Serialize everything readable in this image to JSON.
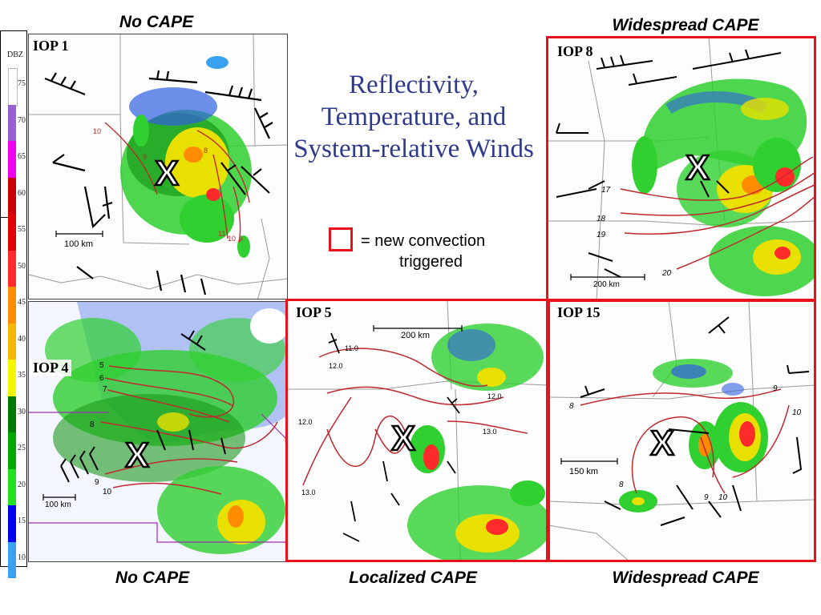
{
  "headers": {
    "top_left": "No CAPE",
    "top_right": "Widespread CAPE",
    "bottom_left": "No CAPE",
    "bottom_middle": "Localized CAPE",
    "bottom_right": "Widespread CAPE"
  },
  "title": "Reflectivity, Temperature, and System-relative Winds",
  "legend": {
    "box_color": "#e8121d",
    "text_line1": "= new convection",
    "text_line2": "triggered"
  },
  "dbz_scale": {
    "label": "DBZ",
    "ticks": [
      "75",
      "70",
      "65",
      "60",
      "55",
      "50",
      "45",
      "40",
      "35",
      "30",
      "25",
      "20",
      "15",
      "10"
    ],
    "colors": [
      "#ffffff",
      "#9a5fd0",
      "#f000f0",
      "#c80000",
      "#e00000",
      "#ff2a2a",
      "#ff8c00",
      "#f5b800",
      "#f5f500",
      "#007a00",
      "#00a800",
      "#22e022",
      "#0000f0",
      "#3aa0f0"
    ]
  },
  "panels": {
    "iop1": {
      "label": "IOP 1",
      "scale": "100 km",
      "contours": [
        "10",
        "9",
        "8",
        "11",
        "10",
        "9"
      ],
      "marker": "X"
    },
    "iop4": {
      "label": "IOP 4",
      "scale": "100 km",
      "contours": [
        "5",
        "6",
        "7",
        "8",
        "9",
        "10"
      ],
      "marker": "X"
    },
    "iop5": {
      "label": "IOP 5",
      "scale": "200 km",
      "contours": [
        "11.0",
        "12.0",
        "12.0",
        "12.0",
        "13.0",
        "13.0"
      ],
      "marker": "X"
    },
    "iop8": {
      "label": "IOP 8",
      "scale": "200 km",
      "contours": [
        "17",
        "18",
        "19",
        "20"
      ],
      "marker": "X"
    },
    "iop15": {
      "label": "IOP 15",
      "scale": "150 km",
      "contours": [
        "8",
        "9",
        "10",
        "8",
        "9",
        "10"
      ],
      "marker": "X"
    }
  },
  "colors": {
    "frame_red": "#e8121d",
    "title_blue": "#2e3a8c",
    "contour_red": "#c0282e"
  }
}
